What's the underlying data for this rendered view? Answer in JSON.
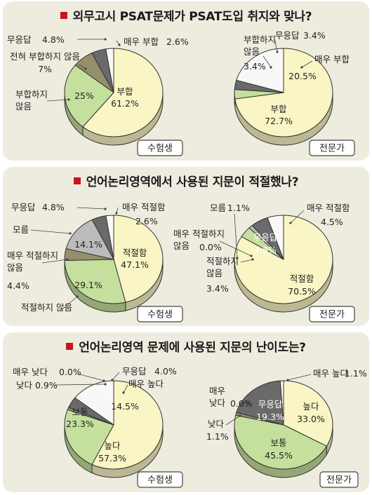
{
  "panels": [
    {
      "title": "외무고시 PSAT문제가 PSAT도입 취지와 맞나?"
    },
    {
      "title": "언어논리영역에서 사용된 지문이 적절했나?"
    },
    {
      "title": "언어논리영역 문제에 사용된 지문의 난이도는?"
    }
  ],
  "chart_data": [
    {
      "type": "pie",
      "title": "외무고시 PSAT문제가 PSAT도입 취지와 맞나?",
      "group": "수험생",
      "slices": [
        {
          "label": "매우 부합",
          "value": 2.6,
          "display": "2.6%",
          "color": "#f8f8f8"
        },
        {
          "label": "부합",
          "value": 61.2,
          "display": "61.2%",
          "color": "#f9f5c4"
        },
        {
          "label": "부합하지 않음",
          "value": 25,
          "display": "25%",
          "color": "#c5e09c"
        },
        {
          "label": "전혀 부합하지 않음",
          "value": 7,
          "display": "7%",
          "color": "#958f6c"
        },
        {
          "label": "무응답",
          "value": 4.8,
          "display": "4.8%",
          "color": "#6a6a6a"
        }
      ]
    },
    {
      "type": "pie",
      "title": "외무고시 PSAT문제가 PSAT도입 취지와 맞나?",
      "group": "전문가",
      "slices": [
        {
          "label": "매우 부합",
          "value": 20.5,
          "display": "20.5%",
          "color": "#f8f8f8"
        },
        {
          "label": "부합",
          "value": 72.7,
          "display": "72.7%",
          "color": "#f9f5c4"
        },
        {
          "label": "부합하지 않음",
          "value": 3.4,
          "display": "3.4%",
          "color": "#c5e09c"
        },
        {
          "label": "무응답",
          "value": 3.4,
          "display": "3.4%",
          "color": "#6a6a6a"
        }
      ]
    },
    {
      "type": "pie",
      "title": "언어논리영역에서 사용된 지문이 적절했나?",
      "group": "수험생",
      "slices": [
        {
          "label": "매우 적절함",
          "value": 2.6,
          "display": "2.6%",
          "color": "#f8f8f8"
        },
        {
          "label": "적절함",
          "value": 47.1,
          "display": "47.1%",
          "color": "#f9f5c4"
        },
        {
          "label": "적절하지 않음",
          "value": 29.1,
          "display": "29.1%",
          "color": "#c5e09c"
        },
        {
          "label": "매우 적절하지 않음",
          "value": 4.4,
          "display": "4.4%",
          "color": "#958f6c"
        },
        {
          "label": "모름",
          "value": 14.1,
          "display": "14.1%",
          "color": "#bcbcbc"
        },
        {
          "label": "무응답",
          "value": 4.8,
          "display": "4.8%",
          "color": "#6a6a6a"
        }
      ]
    },
    {
      "type": "pie",
      "title": "언어논리영역에서 사용된 지문이 적절했나?",
      "group": "전문가",
      "slices": [
        {
          "label": "매우 적절함",
          "value": 4.5,
          "display": "4.5%",
          "color": "#f8f8f8"
        },
        {
          "label": "적절함",
          "value": 70.5,
          "display": "70.5%",
          "color": "#f9f5c4"
        },
        {
          "label": "적절하지 않음",
          "value": 3.4,
          "display": "3.4%",
          "color": "#c5e09c"
        },
        {
          "label": "매우 적절하지 않음",
          "value": 0.0,
          "display": "0.0%",
          "color": "#958f6c"
        },
        {
          "label": "모름",
          "value": 1.1,
          "display": "1.1%",
          "color": "#bcbcbc"
        },
        {
          "label": "무응답",
          "value": 4.8,
          "display": "4.8%",
          "color": "#6a6a6a"
        }
      ]
    },
    {
      "type": "pie",
      "title": "언어논리영역 문제에 사용된 지문의 난이도는?",
      "group": "수험생",
      "slices": [
        {
          "label": "매우 높다",
          "value": 14.5,
          "display": "14.5%",
          "color": "#f8f8f8"
        },
        {
          "label": "높다",
          "value": 57.3,
          "display": "57.3%",
          "color": "#f9f5c4"
        },
        {
          "label": "보통",
          "value": 23.3,
          "display": "23.3%",
          "color": "#c5e09c"
        },
        {
          "label": "낮다",
          "value": 0.9,
          "display": "0.9%",
          "color": "#958f6c"
        },
        {
          "label": "매우 낮다",
          "value": 0.0,
          "display": "0.0%",
          "color": "#bcbcbc"
        },
        {
          "label": "무응답",
          "value": 4.0,
          "display": "4.0%",
          "color": "#6a6a6a"
        }
      ]
    },
    {
      "type": "pie",
      "title": "언어논리영역 문제에 사용된 지문의 난이도는?",
      "group": "전문가",
      "slices": [
        {
          "label": "매우 높다",
          "value": 1.1,
          "display": "1.1%",
          "color": "#f8f8f8"
        },
        {
          "label": "높다",
          "value": 33.0,
          "display": "33.0%",
          "color": "#f9f5c4"
        },
        {
          "label": "보통",
          "value": 45.5,
          "display": "45.5%",
          "color": "#c5e09c"
        },
        {
          "label": "낮다",
          "value": 1.1,
          "display": "1.1%",
          "color": "#958f6c"
        },
        {
          "label": "매우 낮다",
          "value": 0.0,
          "display": "0.0%",
          "color": "#bcbcbc"
        },
        {
          "label": "무응답",
          "value": 19.3,
          "display": "19.3%",
          "color": "#6a6a6a"
        }
      ]
    }
  ]
}
